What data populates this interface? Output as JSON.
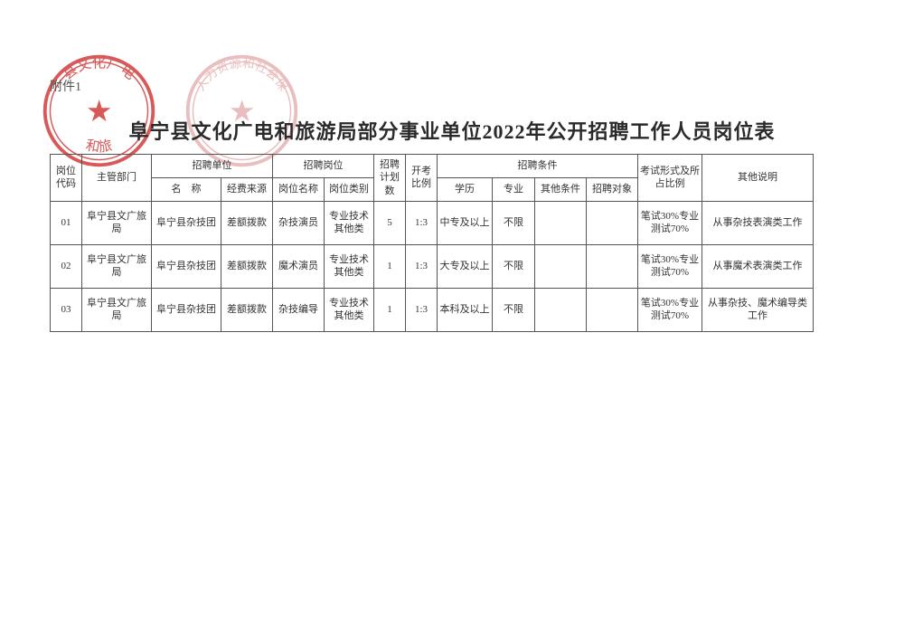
{
  "attachment_label": "附件1",
  "title": "阜宁县文化广电和旅游局部分事业单位2022年公开招聘工作人员岗位表",
  "stamps": {
    "left": {
      "text_top": "县文化广电",
      "text_bottom": "和旅",
      "center_glyph": "★",
      "color": "#d23a3a"
    },
    "right": {
      "text_top": "人力资源和社会保",
      "text_bottom": "",
      "center_glyph": "★",
      "color": "#e7b3b3"
    }
  },
  "header": {
    "code": "岗位代码",
    "dept": "主管部门",
    "unit_group": "招聘单位",
    "unit_name": "名　称",
    "unit_fund": "经费来源",
    "post_group": "招聘岗位",
    "post_name": "岗位名称",
    "post_cat": "岗位类别",
    "plan": "招聘计划数",
    "ratio": "开考比例",
    "cond_group": "招聘条件",
    "edu": "学历",
    "major": "专业",
    "other_cond": "其他条件",
    "target": "招聘对象",
    "exam": "考试形式及所占比例",
    "remark": "其他说明"
  },
  "rows": [
    {
      "code": "01",
      "dept": "阜宁县文广旅局",
      "unit_name": "阜宁县杂技团",
      "unit_fund": "差额拨款",
      "post_name": "杂技演员",
      "post_cat": "专业技术其他类",
      "plan": "5",
      "ratio": "1:3",
      "edu": "中专及以上",
      "major": "不限",
      "other_cond": "",
      "target": "",
      "exam": "笔试30%专业测试70%",
      "remark": "从事杂技表演类工作"
    },
    {
      "code": "02",
      "dept": "阜宁县文广旅局",
      "unit_name": "阜宁县杂技团",
      "unit_fund": "差额拨款",
      "post_name": "魔术演员",
      "post_cat": "专业技术其他类",
      "plan": "1",
      "ratio": "1:3",
      "edu": "大专及以上",
      "major": "不限",
      "other_cond": "",
      "target": "",
      "exam": "笔试30%专业测试70%",
      "remark": "从事魔术表演类工作"
    },
    {
      "code": "03",
      "dept": "阜宁县文广旅局",
      "unit_name": "阜宁县杂技团",
      "unit_fund": "差额拨款",
      "post_name": "杂技编导",
      "post_cat": "专业技术其他类",
      "plan": "1",
      "ratio": "1:3",
      "edu": "本科及以上",
      "major": "不限",
      "other_cond": "",
      "target": "",
      "exam": "笔试30%专业测试70%",
      "remark": "从事杂技、魔术编导类工作"
    }
  ]
}
